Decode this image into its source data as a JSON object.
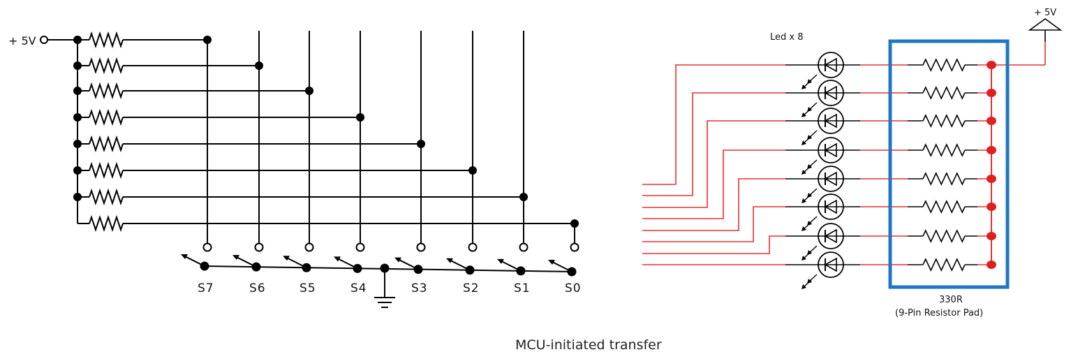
{
  "labels": {
    "supply_left": "+ 5V",
    "supply_right": "+ 5V",
    "led_label": "Led x 8",
    "resistor_value": "330R",
    "resistor_pad": "(9-Pin Resistor Pad)",
    "caption": "MCU-initiated transfer"
  },
  "switches": [
    "S7",
    "S6",
    "S5",
    "S4",
    "S3",
    "S2",
    "S1",
    "S0"
  ],
  "colors": {
    "schematic_line": "#000000",
    "led_wire": "#e53030",
    "resistor_pad_box": "#1f77c4",
    "pad_dot": "#e02020"
  }
}
